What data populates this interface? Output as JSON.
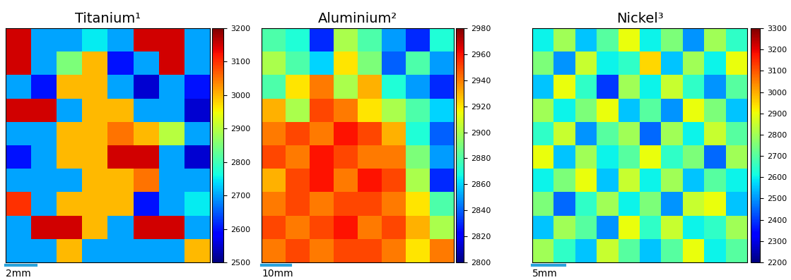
{
  "chart_data": [
    {
      "type": "heatmap",
      "title": "Titanium¹",
      "color": "jet",
      "tick_labels": false,
      "scale_bar_label": "2mm",
      "colorbar_range": [
        2500,
        3200
      ],
      "colorbar_ticks": [
        2500,
        2600,
        2700,
        2800,
        2900,
        3000,
        3100,
        3200
      ],
      "cells": [
        [
          3150,
          2700,
          2700,
          2750,
          2700,
          3150,
          3150,
          2700
        ],
        [
          3150,
          2700,
          2850,
          3000,
          2600,
          2700,
          3150,
          2700
        ],
        [
          2700,
          2600,
          3000,
          3000,
          2700,
          2550,
          2700,
          2600
        ],
        [
          3150,
          3150,
          2700,
          3000,
          3000,
          2700,
          2700,
          2550
        ],
        [
          2700,
          2700,
          3000,
          3000,
          3050,
          3000,
          2900,
          2700
        ],
        [
          2600,
          2700,
          3000,
          3000,
          3150,
          3150,
          2700,
          2550
        ],
        [
          2700,
          2700,
          2700,
          3000,
          3000,
          3050,
          2700,
          2700
        ],
        [
          3100,
          2700,
          3000,
          3000,
          3000,
          2600,
          2700,
          2750
        ],
        [
          2700,
          3150,
          3150,
          3000,
          2700,
          3150,
          3150,
          2700
        ],
        [
          2700,
          2700,
          3000,
          2700,
          2700,
          2700,
          2700,
          3000
        ]
      ]
    },
    {
      "type": "heatmap",
      "title": "Aluminium²",
      "color": "jet",
      "tick_labels": false,
      "scale_bar_label": "10mm",
      "colorbar_range": [
        2800,
        2980
      ],
      "colorbar_ticks": [
        2800,
        2820,
        2840,
        2860,
        2880,
        2900,
        2920,
        2940,
        2960,
        2980
      ],
      "cells": [
        [
          2880,
          2870,
          2830,
          2900,
          2880,
          2850,
          2830,
          2870
        ],
        [
          2900,
          2880,
          2860,
          2920,
          2890,
          2840,
          2880,
          2850
        ],
        [
          2880,
          2920,
          2940,
          2900,
          2930,
          2870,
          2850,
          2830
        ],
        [
          2930,
          2900,
          2950,
          2940,
          2920,
          2900,
          2880,
          2860
        ],
        [
          2940,
          2950,
          2940,
          2960,
          2950,
          2930,
          2870,
          2840
        ],
        [
          2950,
          2940,
          2960,
          2950,
          2940,
          2940,
          2890,
          2850
        ],
        [
          2930,
          2950,
          2960,
          2940,
          2960,
          2950,
          2900,
          2830
        ],
        [
          2940,
          2950,
          2940,
          2950,
          2950,
          2940,
          2920,
          2880
        ],
        [
          2950,
          2940,
          2950,
          2960,
          2940,
          2950,
          2930,
          2900
        ],
        [
          2940,
          2950,
          2940,
          2950,
          2950,
          2940,
          2920,
          2940
        ]
      ]
    },
    {
      "type": "heatmap",
      "title": "Nickel³",
      "color": "jet",
      "tick_labels": false,
      "scale_bar_label": "5mm",
      "colorbar_range": [
        2200,
        3300
      ],
      "colorbar_ticks": [
        2200,
        2300,
        2400,
        2500,
        2600,
        2700,
        2800,
        2900,
        3000,
        3100,
        3200,
        3300
      ],
      "cells": [
        [
          2600,
          2800,
          2550,
          2700,
          2900,
          2600,
          2750,
          2500,
          2800,
          2650
        ],
        [
          2750,
          2500,
          2850,
          2600,
          2650,
          2950,
          2550,
          2800,
          2600,
          2900
        ],
        [
          2550,
          2900,
          2650,
          2400,
          2800,
          2600,
          2850,
          2650,
          2500,
          2700
        ],
        [
          2800,
          2600,
          2750,
          2900,
          2550,
          2700,
          2500,
          2900,
          2750,
          2550
        ],
        [
          2650,
          2850,
          2500,
          2700,
          2800,
          2450,
          2800,
          2600,
          2850,
          2700
        ],
        [
          2900,
          2550,
          2800,
          2600,
          2700,
          2900,
          2650,
          2750,
          2450,
          2800
        ],
        [
          2600,
          2750,
          2900,
          2550,
          2850,
          2600,
          2800,
          2550,
          2700,
          2600
        ],
        [
          2750,
          2450,
          2650,
          2800,
          2600,
          2750,
          2500,
          2850,
          2900,
          2550
        ],
        [
          2550,
          2800,
          2700,
          2500,
          2900,
          2650,
          2850,
          2600,
          2650,
          2800
        ],
        [
          2800,
          2650,
          2550,
          2850,
          2700,
          2550,
          2700,
          2900,
          2600,
          2700
        ]
      ]
    }
  ]
}
